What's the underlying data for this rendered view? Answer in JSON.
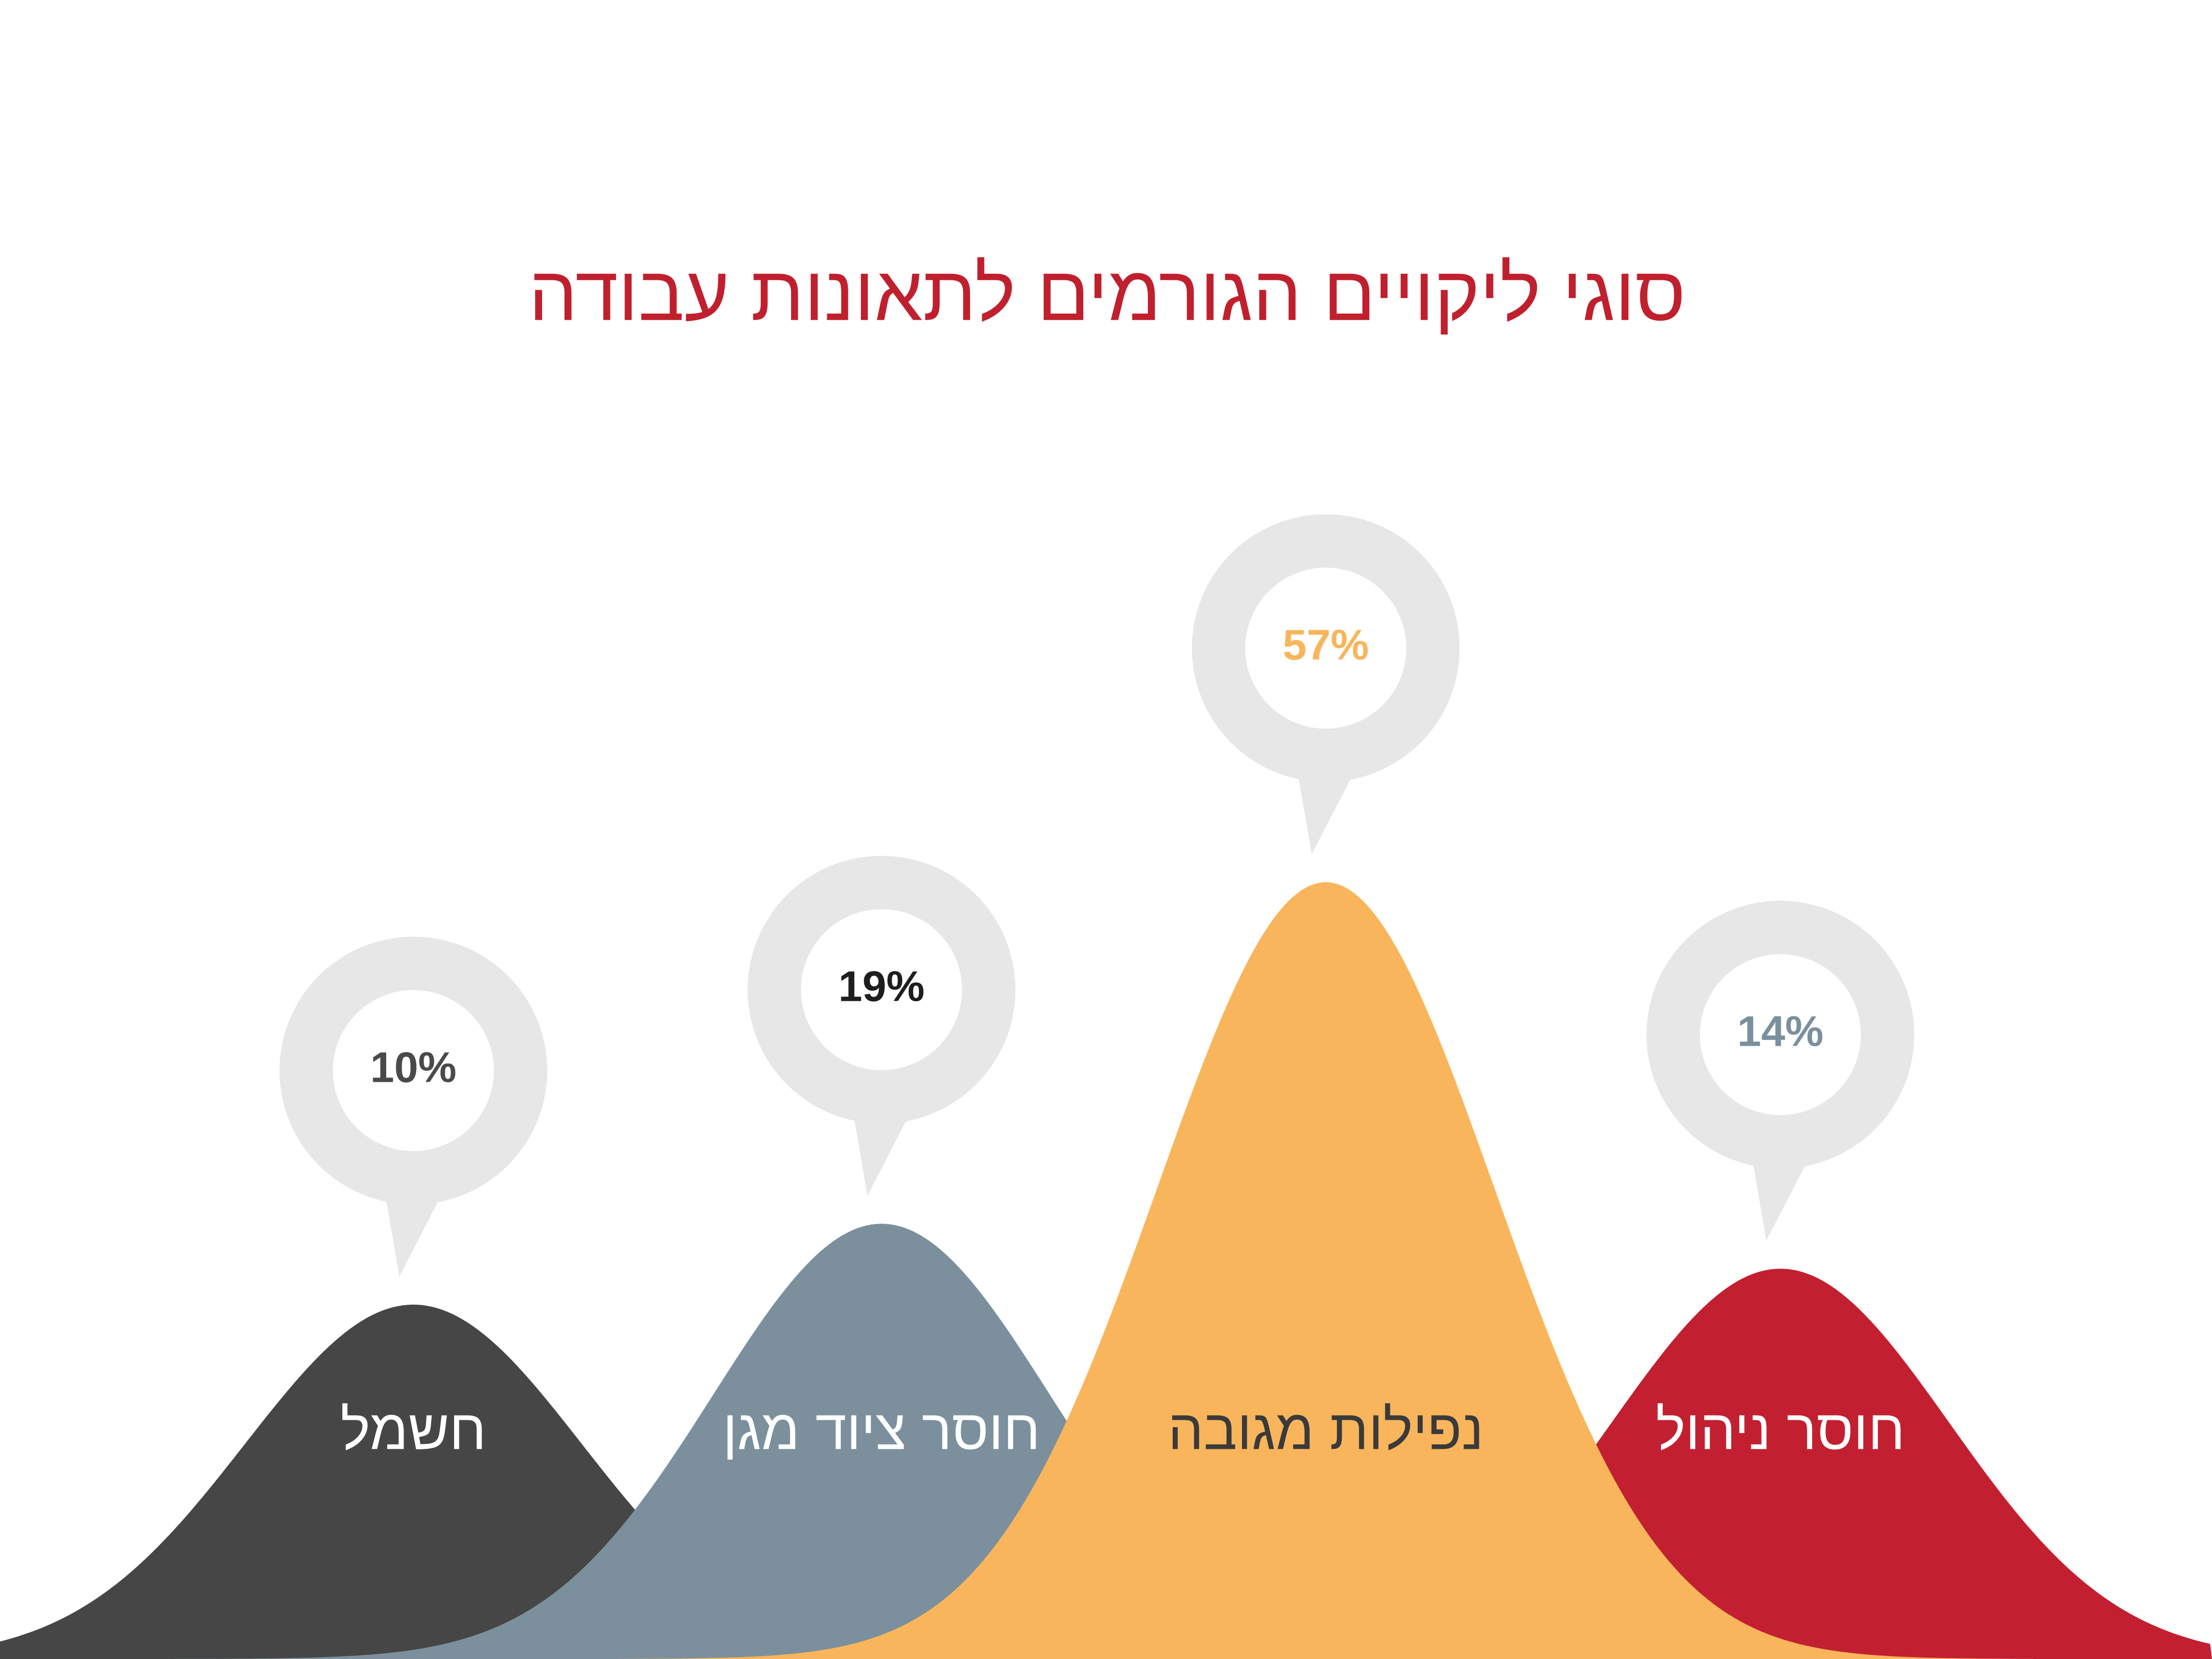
{
  "chart_data": {
    "type": "bell",
    "title": "סוגי ליקויים הגורמים לתאונות עבודה",
    "categories": [
      "חשמל",
      "חוסר ציוד מגן",
      "נפילות מגובה",
      "חוסר ניהול"
    ],
    "values": [
      10,
      19,
      57,
      14
    ],
    "value_labels": [
      "10%",
      "19%",
      "57%",
      "14%"
    ],
    "colors": [
      "#464646",
      "#7b909c",
      "#f9b55c",
      "#c22030"
    ],
    "value_label_colors": [
      "#4a4a4a",
      "#1e1e1e",
      "#f9b55c",
      "#7b909c"
    ],
    "category_label_colors": [
      "#ffffff",
      "#ffffff",
      "#3a3a3a",
      "#ffffff"
    ],
    "title_color": "#c0202e"
  }
}
